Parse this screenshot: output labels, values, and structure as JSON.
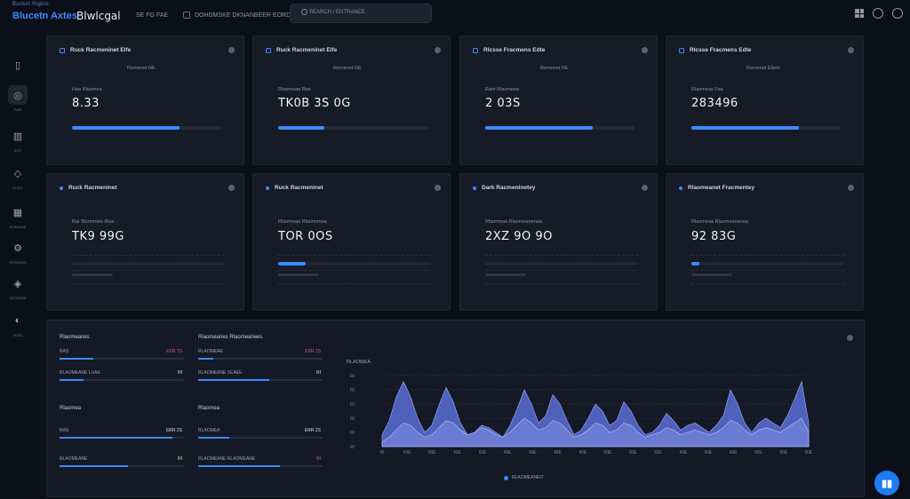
{
  "header": {
    "brand_small": "Bucket Rights",
    "brand_main": "Blucetn Axtes",
    "brand_name": "Blwlcgal",
    "crumb": "SE  FG  FAE",
    "nav_text": "DOHDMSKE  DKNANBEER  EORD",
    "search_placeholder": "SEARCH  /  ENTRANCE"
  },
  "sidebar": {
    "items": [
      {
        "icon": "clipboard-icon",
        "glyph": "▯",
        "label": ""
      },
      {
        "icon": "dashboard-icon",
        "glyph": "◎",
        "label": "FOR"
      },
      {
        "icon": "chart-icon",
        "glyph": "▥",
        "label": "SCE"
      },
      {
        "icon": "shield-icon",
        "glyph": "◇",
        "label": "EUGS"
      },
      {
        "icon": "grid-icon",
        "glyph": "▦",
        "label": "EHASEAE"
      },
      {
        "icon": "gear-icon",
        "glyph": "⚙",
        "label": "EDSSHAS"
      },
      {
        "icon": "users-icon",
        "glyph": "◈",
        "label": "GEOSSAE"
      },
      {
        "icon": "settings-icon",
        "glyph": "◐",
        "label": "RUSS"
      }
    ]
  },
  "cards_row1": [
    {
      "title": "Ruck Racmeninet Elfe",
      "sub": "Remenet NE",
      "label": "Haa Rlaomea",
      "value": "8.33",
      "progress": 0.72
    },
    {
      "title": "Ruck Racmeninet Elfe",
      "sub": "Remenet NE",
      "label": "Rlaomeaa Raa",
      "value": "TK0B 3S 0G",
      "progress": 0.31
    },
    {
      "title": "Rlcsse Fracmens Edte",
      "sub": "Remenet NE",
      "label": "Ram Rlacmeaa",
      "value": "2 03S",
      "progress": 0.72
    },
    {
      "title": "Rlcsse Fracmens Edte",
      "sub": "Remenet Ellem",
      "label": "Rlaomeas Fae",
      "value": "283496",
      "progress": 0.72
    }
  ],
  "cards_row2": [
    {
      "title": "Ruck Racmeninet",
      "label": "Rar Blcmenee Rlue",
      "value": "TK9 99G",
      "progress": 0.0
    },
    {
      "title": "Ruck Racmeninet",
      "label": "Rlaomeaa Rlaomenaa",
      "value": "TOR 0OS",
      "progress": 0.18
    },
    {
      "title": "Dark Racmeninetey",
      "label": "Rlaomeaa Rlaomeanenaa",
      "value": "2XZ 9O 9O",
      "progress": 0.0
    },
    {
      "title": "Rlaomeanet Fracmentey",
      "label": "Rlaomeaa Rlaomeanenaa",
      "value": "92 83G",
      "progress": 0.05
    }
  ],
  "panel": {
    "col1": {
      "title_top": "Rlaomeanes",
      "rows_top": [
        {
          "label": "RAS",
          "value": "EXR 7S",
          "pink": true,
          "fill": 0.27
        },
        {
          "label": "RLAOMEANE  LUAE",
          "value": "Rf",
          "pink": false,
          "fill": 0.19
        }
      ],
      "title_bottom": "Rlaomea",
      "rows_bottom": [
        {
          "label": "RAS",
          "value": "ERR 2S",
          "pink": false,
          "fill": 0.91
        },
        {
          "label": "RLAOMEANE",
          "value": "Rf",
          "pink": false,
          "fill": 0.55
        }
      ]
    },
    "col2": {
      "title_top": "Rlaomeanes  Rlaomeanees",
      "rows_top": [
        {
          "label": "RLAOMEAE",
          "value": "EXR 7S",
          "pink": true,
          "fill": 0.12
        },
        {
          "label": "RLAOMEANE  SEAEE",
          "value": "Rf",
          "pink": false,
          "fill": 0.57
        }
      ],
      "title_bottom": "Rlaomea",
      "rows_bottom": [
        {
          "label": "RLAOMEA",
          "value": "ERR 2S",
          "pink": false,
          "fill": 0.25
        },
        {
          "label": "RLAOMEANE  RLAOMEANE",
          "value": "Rf",
          "pink": true,
          "fill": 0.66
        }
      ]
    },
    "chart_title": "RLAOMEA",
    "legend": "RLAOMEANEO"
  },
  "chart_data": {
    "type": "area",
    "x": [
      0,
      1,
      2,
      3,
      4,
      5,
      6,
      7,
      8,
      9,
      10,
      11,
      12,
      13,
      14,
      15,
      16,
      17,
      18,
      19,
      20,
      21,
      22,
      23,
      24,
      25,
      26,
      27,
      28,
      29,
      30,
      31,
      32,
      33,
      34,
      35,
      36,
      37,
      38,
      39,
      40,
      41,
      42,
      43,
      44,
      45,
      46,
      47,
      48,
      49,
      50,
      51,
      52,
      53,
      54,
      55,
      56,
      57,
      58,
      59,
      60
    ],
    "series": [
      {
        "values": [
          10,
          22,
          42,
          55,
          42,
          24,
          12,
          18,
          35,
          50,
          38,
          20,
          10,
          12,
          18,
          16,
          12,
          8,
          18,
          32,
          48,
          36,
          20,
          26,
          44,
          36,
          22,
          10,
          14,
          24,
          36,
          30,
          18,
          22,
          38,
          30,
          18,
          10,
          12,
          18,
          28,
          22,
          14,
          18,
          20,
          16,
          12,
          18,
          26,
          48,
          36,
          20,
          12,
          20,
          24,
          20,
          16,
          26,
          40,
          55,
          20
        ]
      },
      {
        "values": [
          4,
          8,
          14,
          20,
          18,
          12,
          8,
          10,
          16,
          22,
          20,
          14,
          10,
          12,
          16,
          14,
          10,
          8,
          12,
          18,
          24,
          20,
          14,
          16,
          22,
          20,
          14,
          8,
          10,
          14,
          20,
          18,
          12,
          14,
          20,
          18,
          12,
          8,
          10,
          12,
          16,
          14,
          10,
          12,
          14,
          12,
          10,
          12,
          16,
          22,
          20,
          14,
          10,
          14,
          16,
          14,
          12,
          16,
          20,
          24,
          12
        ]
      }
    ],
    "ylim": [
      0,
      60
    ],
    "y_ticks": [
      "RI",
      "RI",
      "RI",
      "RI",
      "RI",
      "RI"
    ],
    "x_ticks": [
      "RI",
      "RIE",
      "RIE",
      "RIE",
      "RIE",
      "RIE",
      "RIE",
      "RIE",
      "RIE",
      "RIE",
      "RIE",
      "RIE",
      "RIE",
      "RIE",
      "RIE",
      "RIE",
      "RIE",
      "RIE"
    ],
    "colors": [
      "#5a6fd6",
      "#8a9cf0"
    ],
    "grid": true
  },
  "fab_glyph": "▮▮"
}
